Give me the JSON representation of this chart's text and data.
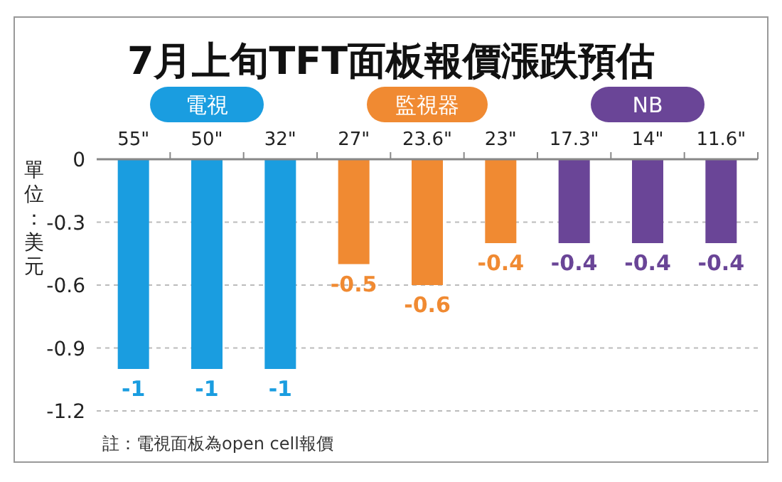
{
  "chart_data": {
    "type": "bar",
    "title": "7月上旬TFT面板報價漲跌預估",
    "ylabel": "單位：美元",
    "categories": [
      "55\"",
      "50\"",
      "32\"",
      "27\"",
      "23.6\"",
      "23\"",
      "17.3\"",
      "14\"",
      "11.6\""
    ],
    "series": [
      {
        "name": "電視",
        "color": "#1a9de0",
        "values": [
          -1,
          -1,
          -1,
          null,
          null,
          null,
          null,
          null,
          null
        ]
      },
      {
        "name": "監視器",
        "color": "#f08a32",
        "values": [
          null,
          null,
          null,
          -0.5,
          -0.6,
          -0.4,
          null,
          null,
          null
        ]
      },
      {
        "name": "NB",
        "color": "#6a4597",
        "values": [
          null,
          null,
          null,
          null,
          null,
          null,
          -0.4,
          -0.4,
          -0.4
        ]
      }
    ],
    "ylim": [
      -1.2,
      0
    ],
    "yticks": [
      0,
      -0.3,
      -0.6,
      -0.9,
      -1.2
    ],
    "grid": "y",
    "legend": "top",
    "data_labels": true,
    "annotations": [
      "註：電視面板為open cell報價"
    ]
  }
}
